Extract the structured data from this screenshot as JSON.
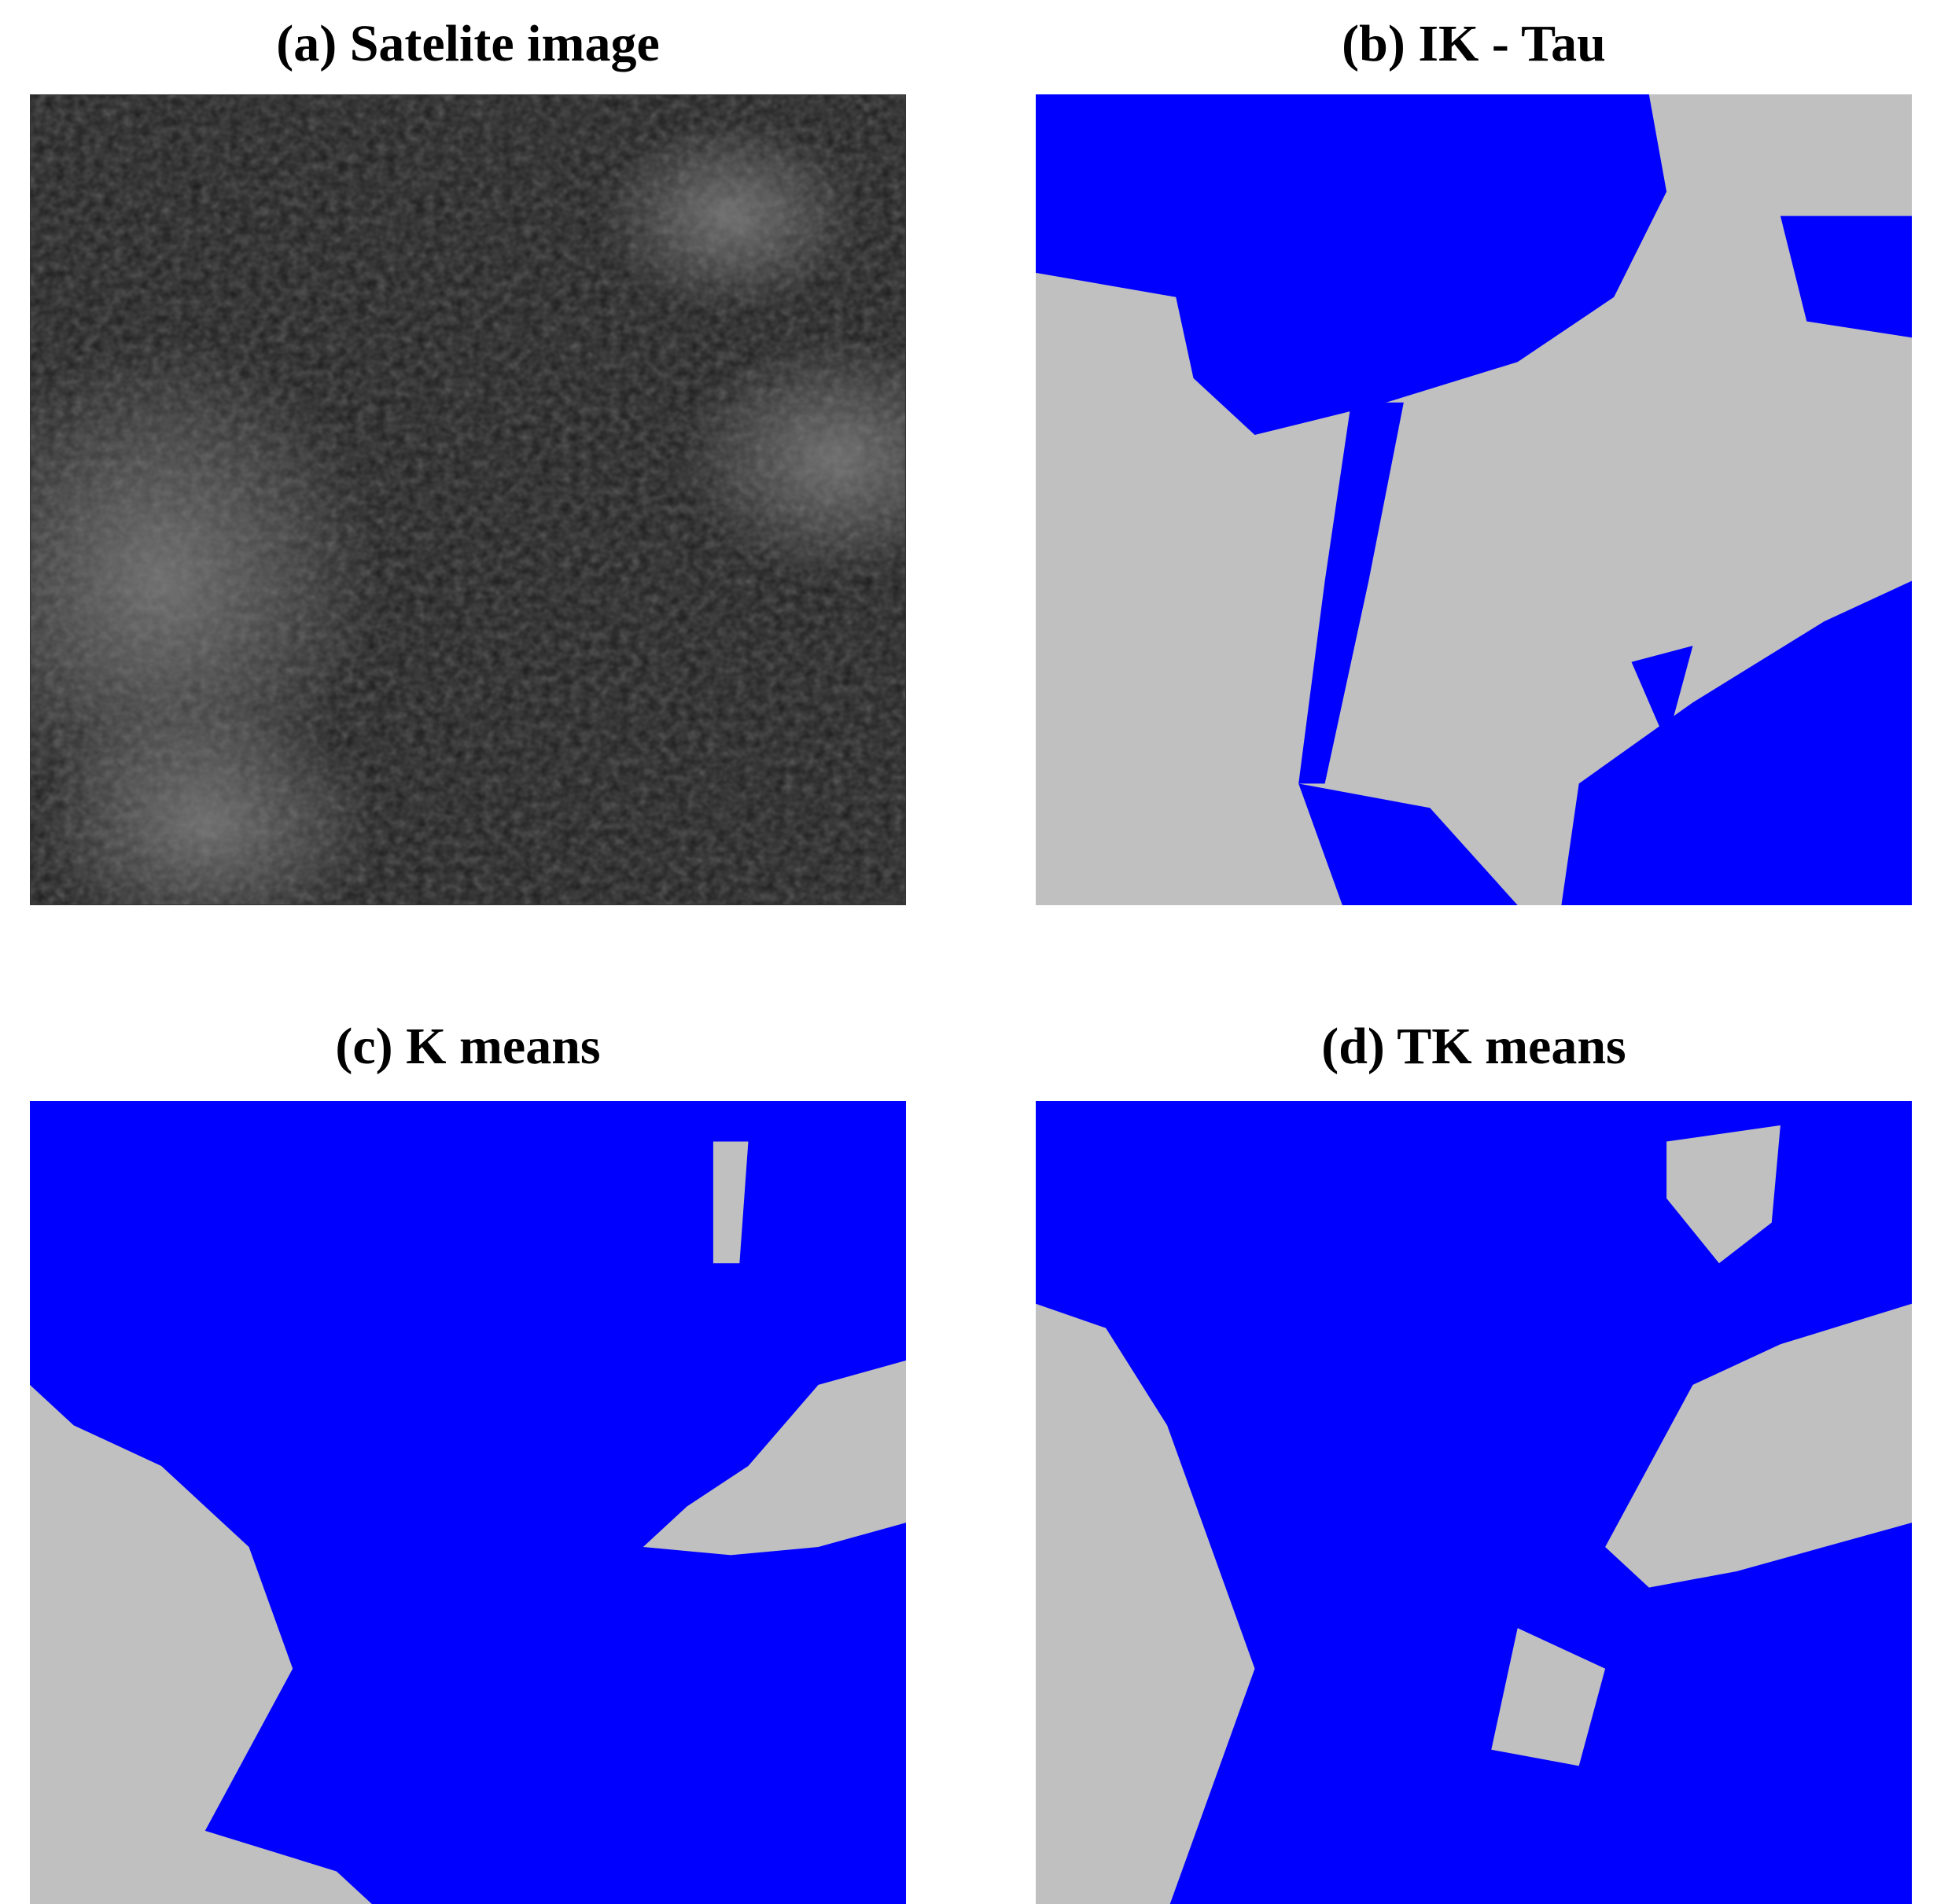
{
  "panels": [
    {
      "title": "(a) Satelite image"
    },
    {
      "title": "(b) IK - Tau"
    },
    {
      "title": "(c) K means"
    },
    {
      "title": "(d) TK means"
    }
  ]
}
